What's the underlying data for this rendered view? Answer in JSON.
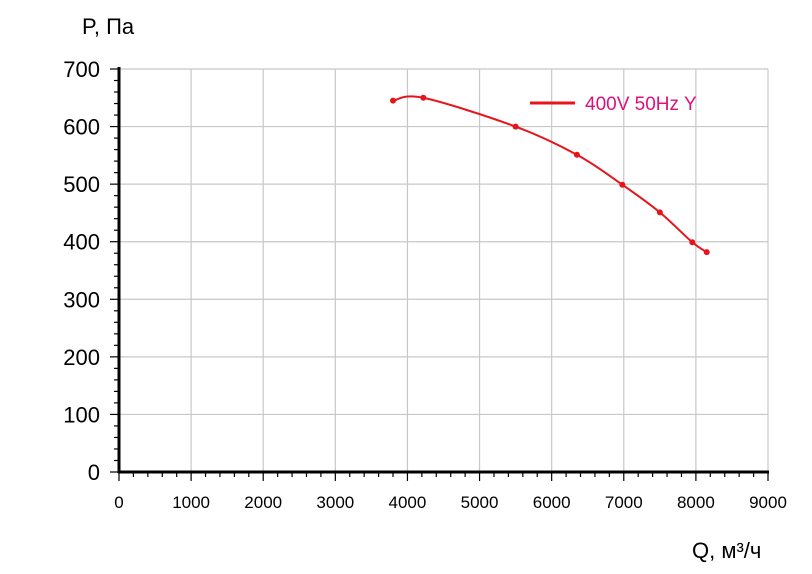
{
  "chart_data": {
    "type": "line",
    "xlabel": "Q, м³/ч",
    "ylabel": "P, Па",
    "xlim": [
      0,
      9000
    ],
    "ylim": [
      0,
      700
    ],
    "x_ticks": [
      "0",
      "1000",
      "2000",
      "3000",
      "4000",
      "5000",
      "6000",
      "7000",
      "8000",
      "9000"
    ],
    "y_ticks": [
      "0",
      "100",
      "200",
      "300",
      "400",
      "500",
      "600",
      "700"
    ],
    "grid": true,
    "legend_position": "top-right",
    "series": [
      {
        "name": "400V 50Hz Y",
        "color": "#e8141c",
        "legend_text_color": "#e0107a",
        "x": [
          3800,
          4220,
          5500,
          6350,
          6980,
          7500,
          7950,
          8150
        ],
        "y": [
          645,
          650,
          600,
          551,
          499,
          451,
          399,
          382
        ]
      }
    ]
  }
}
